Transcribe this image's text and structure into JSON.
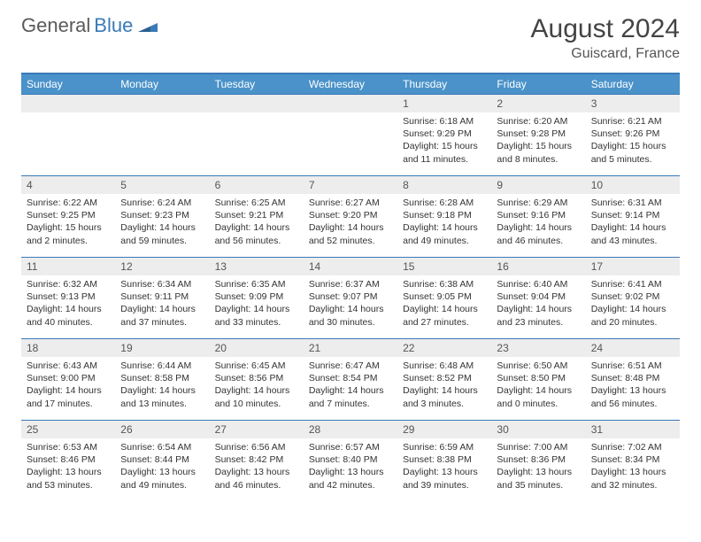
{
  "logo": {
    "text1": "General",
    "text2": "Blue"
  },
  "title": "August 2024",
  "location": "Guiscard, France",
  "colors": {
    "header_bg": "#4a92c9",
    "border": "#3a7ab8",
    "daynum_bg": "#ededed",
    "text": "#333333"
  },
  "weekdays": [
    "Sunday",
    "Monday",
    "Tuesday",
    "Wednesday",
    "Thursday",
    "Friday",
    "Saturday"
  ],
  "weeks": [
    [
      null,
      null,
      null,
      null,
      {
        "n": "1",
        "sr": "Sunrise: 6:18 AM",
        "ss": "Sunset: 9:29 PM",
        "d1": "Daylight: 15 hours",
        "d2": "and 11 minutes."
      },
      {
        "n": "2",
        "sr": "Sunrise: 6:20 AM",
        "ss": "Sunset: 9:28 PM",
        "d1": "Daylight: 15 hours",
        "d2": "and 8 minutes."
      },
      {
        "n": "3",
        "sr": "Sunrise: 6:21 AM",
        "ss": "Sunset: 9:26 PM",
        "d1": "Daylight: 15 hours",
        "d2": "and 5 minutes."
      }
    ],
    [
      {
        "n": "4",
        "sr": "Sunrise: 6:22 AM",
        "ss": "Sunset: 9:25 PM",
        "d1": "Daylight: 15 hours",
        "d2": "and 2 minutes."
      },
      {
        "n": "5",
        "sr": "Sunrise: 6:24 AM",
        "ss": "Sunset: 9:23 PM",
        "d1": "Daylight: 14 hours",
        "d2": "and 59 minutes."
      },
      {
        "n": "6",
        "sr": "Sunrise: 6:25 AM",
        "ss": "Sunset: 9:21 PM",
        "d1": "Daylight: 14 hours",
        "d2": "and 56 minutes."
      },
      {
        "n": "7",
        "sr": "Sunrise: 6:27 AM",
        "ss": "Sunset: 9:20 PM",
        "d1": "Daylight: 14 hours",
        "d2": "and 52 minutes."
      },
      {
        "n": "8",
        "sr": "Sunrise: 6:28 AM",
        "ss": "Sunset: 9:18 PM",
        "d1": "Daylight: 14 hours",
        "d2": "and 49 minutes."
      },
      {
        "n": "9",
        "sr": "Sunrise: 6:29 AM",
        "ss": "Sunset: 9:16 PM",
        "d1": "Daylight: 14 hours",
        "d2": "and 46 minutes."
      },
      {
        "n": "10",
        "sr": "Sunrise: 6:31 AM",
        "ss": "Sunset: 9:14 PM",
        "d1": "Daylight: 14 hours",
        "d2": "and 43 minutes."
      }
    ],
    [
      {
        "n": "11",
        "sr": "Sunrise: 6:32 AM",
        "ss": "Sunset: 9:13 PM",
        "d1": "Daylight: 14 hours",
        "d2": "and 40 minutes."
      },
      {
        "n": "12",
        "sr": "Sunrise: 6:34 AM",
        "ss": "Sunset: 9:11 PM",
        "d1": "Daylight: 14 hours",
        "d2": "and 37 minutes."
      },
      {
        "n": "13",
        "sr": "Sunrise: 6:35 AM",
        "ss": "Sunset: 9:09 PM",
        "d1": "Daylight: 14 hours",
        "d2": "and 33 minutes."
      },
      {
        "n": "14",
        "sr": "Sunrise: 6:37 AM",
        "ss": "Sunset: 9:07 PM",
        "d1": "Daylight: 14 hours",
        "d2": "and 30 minutes."
      },
      {
        "n": "15",
        "sr": "Sunrise: 6:38 AM",
        "ss": "Sunset: 9:05 PM",
        "d1": "Daylight: 14 hours",
        "d2": "and 27 minutes."
      },
      {
        "n": "16",
        "sr": "Sunrise: 6:40 AM",
        "ss": "Sunset: 9:04 PM",
        "d1": "Daylight: 14 hours",
        "d2": "and 23 minutes."
      },
      {
        "n": "17",
        "sr": "Sunrise: 6:41 AM",
        "ss": "Sunset: 9:02 PM",
        "d1": "Daylight: 14 hours",
        "d2": "and 20 minutes."
      }
    ],
    [
      {
        "n": "18",
        "sr": "Sunrise: 6:43 AM",
        "ss": "Sunset: 9:00 PM",
        "d1": "Daylight: 14 hours",
        "d2": "and 17 minutes."
      },
      {
        "n": "19",
        "sr": "Sunrise: 6:44 AM",
        "ss": "Sunset: 8:58 PM",
        "d1": "Daylight: 14 hours",
        "d2": "and 13 minutes."
      },
      {
        "n": "20",
        "sr": "Sunrise: 6:45 AM",
        "ss": "Sunset: 8:56 PM",
        "d1": "Daylight: 14 hours",
        "d2": "and 10 minutes."
      },
      {
        "n": "21",
        "sr": "Sunrise: 6:47 AM",
        "ss": "Sunset: 8:54 PM",
        "d1": "Daylight: 14 hours",
        "d2": "and 7 minutes."
      },
      {
        "n": "22",
        "sr": "Sunrise: 6:48 AM",
        "ss": "Sunset: 8:52 PM",
        "d1": "Daylight: 14 hours",
        "d2": "and 3 minutes."
      },
      {
        "n": "23",
        "sr": "Sunrise: 6:50 AM",
        "ss": "Sunset: 8:50 PM",
        "d1": "Daylight: 14 hours",
        "d2": "and 0 minutes."
      },
      {
        "n": "24",
        "sr": "Sunrise: 6:51 AM",
        "ss": "Sunset: 8:48 PM",
        "d1": "Daylight: 13 hours",
        "d2": "and 56 minutes."
      }
    ],
    [
      {
        "n": "25",
        "sr": "Sunrise: 6:53 AM",
        "ss": "Sunset: 8:46 PM",
        "d1": "Daylight: 13 hours",
        "d2": "and 53 minutes."
      },
      {
        "n": "26",
        "sr": "Sunrise: 6:54 AM",
        "ss": "Sunset: 8:44 PM",
        "d1": "Daylight: 13 hours",
        "d2": "and 49 minutes."
      },
      {
        "n": "27",
        "sr": "Sunrise: 6:56 AM",
        "ss": "Sunset: 8:42 PM",
        "d1": "Daylight: 13 hours",
        "d2": "and 46 minutes."
      },
      {
        "n": "28",
        "sr": "Sunrise: 6:57 AM",
        "ss": "Sunset: 8:40 PM",
        "d1": "Daylight: 13 hours",
        "d2": "and 42 minutes."
      },
      {
        "n": "29",
        "sr": "Sunrise: 6:59 AM",
        "ss": "Sunset: 8:38 PM",
        "d1": "Daylight: 13 hours",
        "d2": "and 39 minutes."
      },
      {
        "n": "30",
        "sr": "Sunrise: 7:00 AM",
        "ss": "Sunset: 8:36 PM",
        "d1": "Daylight: 13 hours",
        "d2": "and 35 minutes."
      },
      {
        "n": "31",
        "sr": "Sunrise: 7:02 AM",
        "ss": "Sunset: 8:34 PM",
        "d1": "Daylight: 13 hours",
        "d2": "and 32 minutes."
      }
    ]
  ]
}
